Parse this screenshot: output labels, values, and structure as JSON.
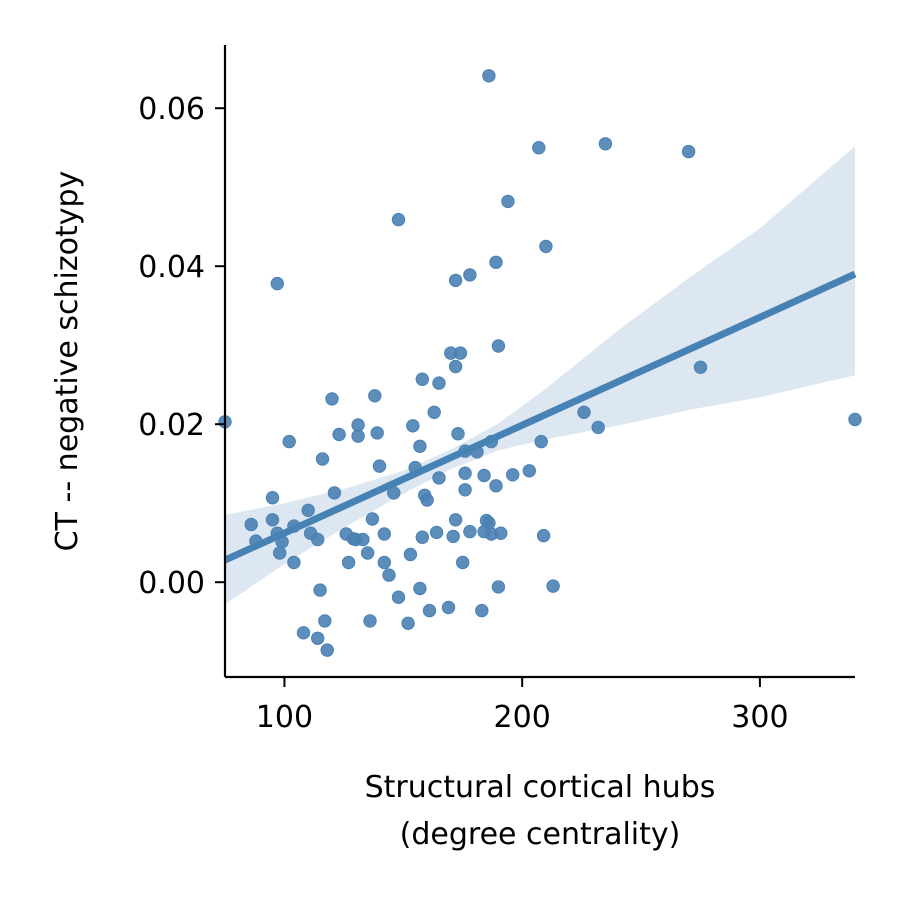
{
  "chart_data": {
    "type": "scatter",
    "title": "",
    "xlabel": [
      "Structural cortical hubs",
      "(degree centrality)"
    ],
    "ylabel": "CT -- negative schizotypy",
    "xlim": [
      75,
      340
    ],
    "ylim": [
      -0.012,
      0.068
    ],
    "x_ticks": [
      100,
      200,
      300
    ],
    "x_tick_labels": [
      "100",
      "200",
      "300"
    ],
    "y_ticks": [
      0.0,
      0.02,
      0.04,
      0.06
    ],
    "y_tick_labels": [
      "0.00",
      "0.02",
      "0.04",
      "0.06"
    ],
    "grid": false,
    "legend": "none",
    "point_color": "#4a81b4",
    "line_color": "#4682b4",
    "band_color": "#dde7f1",
    "regression": {
      "x": [
        75,
        340
      ],
      "y": [
        0.0028,
        0.039
      ]
    },
    "confidence_band": {
      "x": [
        75,
        100,
        125,
        150,
        170,
        190,
        210,
        240,
        270,
        300,
        340
      ],
      "lower": [
        -0.0028,
        0.0023,
        0.0069,
        0.0112,
        0.0143,
        0.0167,
        0.0181,
        0.0198,
        0.0218,
        0.0234,
        0.0262
      ],
      "upper": [
        0.0085,
        0.01,
        0.0118,
        0.0141,
        0.0168,
        0.0201,
        0.0245,
        0.0318,
        0.0385,
        0.0448,
        0.0552
      ]
    },
    "points": [
      {
        "x": 75,
        "y": 0.0203
      },
      {
        "x": 86,
        "y": 0.0073
      },
      {
        "x": 88,
        "y": 0.0052
      },
      {
        "x": 95,
        "y": 0.0107
      },
      {
        "x": 95,
        "y": 0.0079
      },
      {
        "x": 97,
        "y": 0.0062
      },
      {
        "x": 97,
        "y": 0.0378
      },
      {
        "x": 98,
        "y": 0.0037
      },
      {
        "x": 99,
        "y": 0.0051
      },
      {
        "x": 102,
        "y": 0.0178
      },
      {
        "x": 104,
        "y": 0.0025
      },
      {
        "x": 104,
        "y": 0.0071
      },
      {
        "x": 108,
        "y": -0.0064
      },
      {
        "x": 110,
        "y": 0.0091
      },
      {
        "x": 111,
        "y": 0.0062
      },
      {
        "x": 114,
        "y": 0.0054
      },
      {
        "x": 114,
        "y": -0.0071
      },
      {
        "x": 115,
        "y": -0.001
      },
      {
        "x": 116,
        "y": 0.0156
      },
      {
        "x": 117,
        "y": -0.0049
      },
      {
        "x": 118,
        "y": -0.0086
      },
      {
        "x": 120,
        "y": 0.0232
      },
      {
        "x": 121,
        "y": 0.0113
      },
      {
        "x": 123,
        "y": 0.0187
      },
      {
        "x": 126,
        "y": 0.0061
      },
      {
        "x": 127,
        "y": 0.0025
      },
      {
        "x": 129,
        "y": 0.0055
      },
      {
        "x": 130,
        "y": 0.0054
      },
      {
        "x": 131,
        "y": 0.0199
      },
      {
        "x": 131,
        "y": 0.0185
      },
      {
        "x": 133,
        "y": 0.0054
      },
      {
        "x": 135,
        "y": 0.0037
      },
      {
        "x": 136,
        "y": -0.0049
      },
      {
        "x": 137,
        "y": 0.008
      },
      {
        "x": 138,
        "y": 0.0236
      },
      {
        "x": 139,
        "y": 0.0189
      },
      {
        "x": 140,
        "y": 0.0147
      },
      {
        "x": 142,
        "y": 0.0025
      },
      {
        "x": 142,
        "y": 0.0061
      },
      {
        "x": 144,
        "y": 0.0009
      },
      {
        "x": 146,
        "y": 0.0113
      },
      {
        "x": 148,
        "y": 0.0459
      },
      {
        "x": 148,
        "y": -0.0019
      },
      {
        "x": 152,
        "y": -0.0052
      },
      {
        "x": 153,
        "y": 0.0035
      },
      {
        "x": 154,
        "y": 0.0198
      },
      {
        "x": 155,
        "y": 0.0145
      },
      {
        "x": 157,
        "y": -0.0008
      },
      {
        "x": 157,
        "y": 0.0172
      },
      {
        "x": 158,
        "y": 0.0257
      },
      {
        "x": 158,
        "y": 0.0057
      },
      {
        "x": 159,
        "y": 0.011
      },
      {
        "x": 160,
        "y": 0.0104
      },
      {
        "x": 161,
        "y": -0.0036
      },
      {
        "x": 163,
        "y": 0.0215
      },
      {
        "x": 164,
        "y": 0.0063
      },
      {
        "x": 165,
        "y": 0.0132
      },
      {
        "x": 165,
        "y": 0.0252
      },
      {
        "x": 169,
        "y": -0.0032
      },
      {
        "x": 170,
        "y": 0.029
      },
      {
        "x": 171,
        "y": 0.0058
      },
      {
        "x": 172,
        "y": 0.0079
      },
      {
        "x": 172,
        "y": 0.0382
      },
      {
        "x": 172,
        "y": 0.0273
      },
      {
        "x": 173,
        "y": 0.0188
      },
      {
        "x": 174,
        "y": 0.029
      },
      {
        "x": 175,
        "y": 0.0025
      },
      {
        "x": 176,
        "y": 0.0166
      },
      {
        "x": 176,
        "y": 0.0138
      },
      {
        "x": 176,
        "y": 0.0117
      },
      {
        "x": 178,
        "y": 0.0389
      },
      {
        "x": 178,
        "y": 0.0064
      },
      {
        "x": 181,
        "y": 0.0165
      },
      {
        "x": 183,
        "y": -0.0036
      },
      {
        "x": 184,
        "y": 0.0135
      },
      {
        "x": 184,
        "y": 0.0064
      },
      {
        "x": 185,
        "y": 0.0078
      },
      {
        "x": 186,
        "y": 0.0641
      },
      {
        "x": 186,
        "y": 0.0075
      },
      {
        "x": 187,
        "y": 0.0178
      },
      {
        "x": 187,
        "y": 0.0061
      },
      {
        "x": 189,
        "y": 0.0122
      },
      {
        "x": 189,
        "y": 0.0405
      },
      {
        "x": 190,
        "y": 0.0299
      },
      {
        "x": 190,
        "y": -0.0006
      },
      {
        "x": 191,
        "y": 0.0062
      },
      {
        "x": 194,
        "y": 0.0482
      },
      {
        "x": 196,
        "y": 0.0136
      },
      {
        "x": 203,
        "y": 0.0141
      },
      {
        "x": 207,
        "y": 0.055
      },
      {
        "x": 208,
        "y": 0.0178
      },
      {
        "x": 210,
        "y": 0.0425
      },
      {
        "x": 209,
        "y": 0.0059
      },
      {
        "x": 213,
        "y": -0.0005
      },
      {
        "x": 226,
        "y": 0.0215
      },
      {
        "x": 232,
        "y": 0.0196
      },
      {
        "x": 235,
        "y": 0.0555
      },
      {
        "x": 270,
        "y": 0.0545
      },
      {
        "x": 275,
        "y": 0.0272
      },
      {
        "x": 340,
        "y": 0.0206
      }
    ]
  }
}
